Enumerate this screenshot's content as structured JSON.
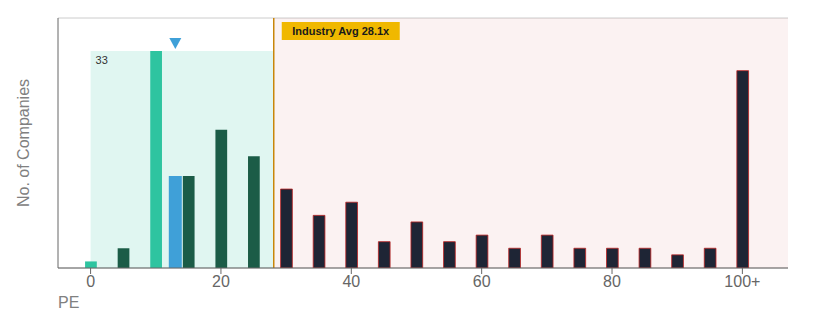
{
  "chart_data": {
    "type": "bar",
    "x": [
      0,
      5,
      10,
      15,
      20,
      25,
      30,
      35,
      40,
      45,
      50,
      55,
      60,
      65,
      70,
      75,
      80,
      85,
      90,
      95,
      100
    ],
    "values": [
      1,
      3,
      33,
      14,
      21,
      17,
      12,
      8,
      10,
      4,
      7,
      4,
      5,
      3,
      5,
      3,
      3,
      3,
      2,
      3,
      30
    ],
    "colors": [
      "#2ec4a0",
      "#1b5c47",
      "#2ec4a0",
      "#1b5c47",
      "#1b5c47",
      "#1b5c47",
      "#1e2535",
      "#1e2535",
      "#1e2535",
      "#1e2535",
      "#1e2535",
      "#1e2535",
      "#1e2535",
      "#1e2535",
      "#1e2535",
      "#1e2535",
      "#1e2535",
      "#1e2535",
      "#1e2535",
      "#1e2535",
      "#1e2535"
    ],
    "xlim": [
      -5,
      107
    ],
    "xticks": [
      0,
      20,
      40,
      60,
      80,
      {
        "value": 100,
        "label": "100+"
      }
    ],
    "ylim": [
      0,
      38
    ],
    "yticks": [
      8,
      17,
      25,
      33
    ],
    "grid": true,
    "tick_labels": "x",
    "xlabel": "PE",
    "ylabel": "No. of Companies",
    "company_pe": 13,
    "company_value": 14,
    "company_color": "#3fa0d8",
    "line_color": "#c8860a",
    "annotation_color": "#f0b800",
    "region_colors": [
      "#2ec4a0",
      "#bb2222"
    ],
    "annotations": [
      {
        "text": "Industry Avg 28.1x",
        "x": 28.1
      },
      {
        "text": "33",
        "x": 0,
        "y": 33
      }
    ]
  }
}
